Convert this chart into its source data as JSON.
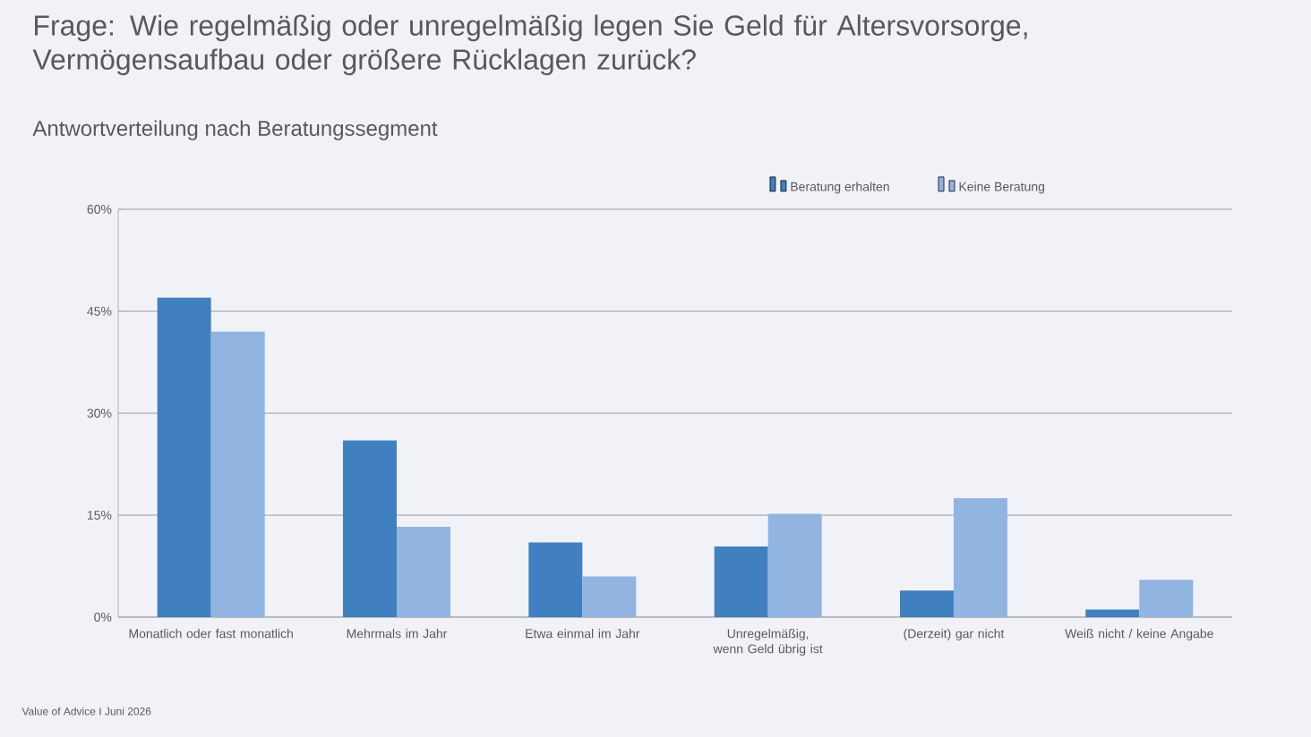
{
  "chart_data": {
    "type": "bar",
    "title": "Frage: Wie regelmäßig oder unregelmäßig legen Sie Geld für Altersvorsorge, Vermögensaufbau oder größere Rücklagen zurück?",
    "subtitle": "Antwortverteilung nach Beratungssegment",
    "categories": [
      "Monatlich oder fast monatlich",
      "Mehrmals im Jahr",
      "Etwa einmal im Jahr",
      "Unregelmäßig, wenn Geld übrig ist",
      "(Derzeit) gar nicht",
      "Weiß nicht / keine Angabe"
    ],
    "series": [
      {
        "name": "Beratung erhalten",
        "color": "#4080c0",
        "values": [
          47,
          26,
          11,
          10.4,
          3.9,
          1.1
        ]
      },
      {
        "name": "Keine Beratung",
        "color": "#92b4e0",
        "values": [
          42,
          13.3,
          6,
          15.2,
          17.5,
          5.5
        ]
      }
    ],
    "ylim": [
      0,
      60
    ],
    "yticks": [
      {
        "value": 0,
        "label": "0%"
      },
      {
        "value": 15,
        "label": "15%"
      },
      {
        "value": 30,
        "label": "30%"
      },
      {
        "value": 45,
        "label": "45%"
      },
      {
        "value": 60,
        "label": "60%"
      }
    ],
    "grid": "y",
    "legend": "top",
    "annotations": [
      "Value of Advice I Juni 2026"
    ]
  }
}
